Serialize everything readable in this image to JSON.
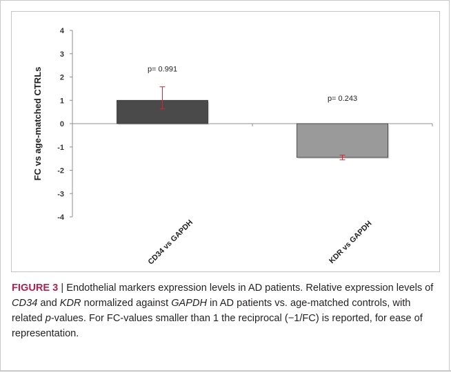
{
  "chart_data": {
    "type": "bar",
    "categories": [
      "CD34 vs GAPDH",
      "KDR vs GAPDH"
    ],
    "values": [
      1.0,
      -1.45
    ],
    "error_high": [
      0.58,
      0.1
    ],
    "error_low": [
      0.37,
      0.1
    ],
    "colors": [
      "#4a4a4a",
      "#9a9a9a"
    ],
    "error_color": "#e02030",
    "annotations": [
      "p= 0.991",
      "p= 0.243"
    ],
    "ylabel": "FC vs age-matched CTRLs",
    "xlabel": "",
    "ylim": [
      -4,
      4
    ],
    "yticks": [
      4,
      3,
      2,
      1,
      0,
      -1,
      -2,
      -3,
      -4
    ],
    "grid": false,
    "legend": "none"
  },
  "caption": {
    "label": "FIGURE 3",
    "separator": " | ",
    "parts": [
      {
        "text": "Endothelial markers expression levels in AD patients. Relative expression levels of ",
        "italic": false
      },
      {
        "text": "CD34",
        "italic": true
      },
      {
        "text": " and ",
        "italic": false
      },
      {
        "text": "KDR",
        "italic": true
      },
      {
        "text": " normalized against ",
        "italic": false
      },
      {
        "text": "GAPDH",
        "italic": true
      },
      {
        "text": " in AD patients vs. age-matched controls, with related ",
        "italic": false
      },
      {
        "text": "p",
        "italic": true
      },
      {
        "text": "-values. For FC-values smaller than 1 the reciprocal (−1/FC) is reported, for ease of representation.",
        "italic": false
      }
    ]
  }
}
